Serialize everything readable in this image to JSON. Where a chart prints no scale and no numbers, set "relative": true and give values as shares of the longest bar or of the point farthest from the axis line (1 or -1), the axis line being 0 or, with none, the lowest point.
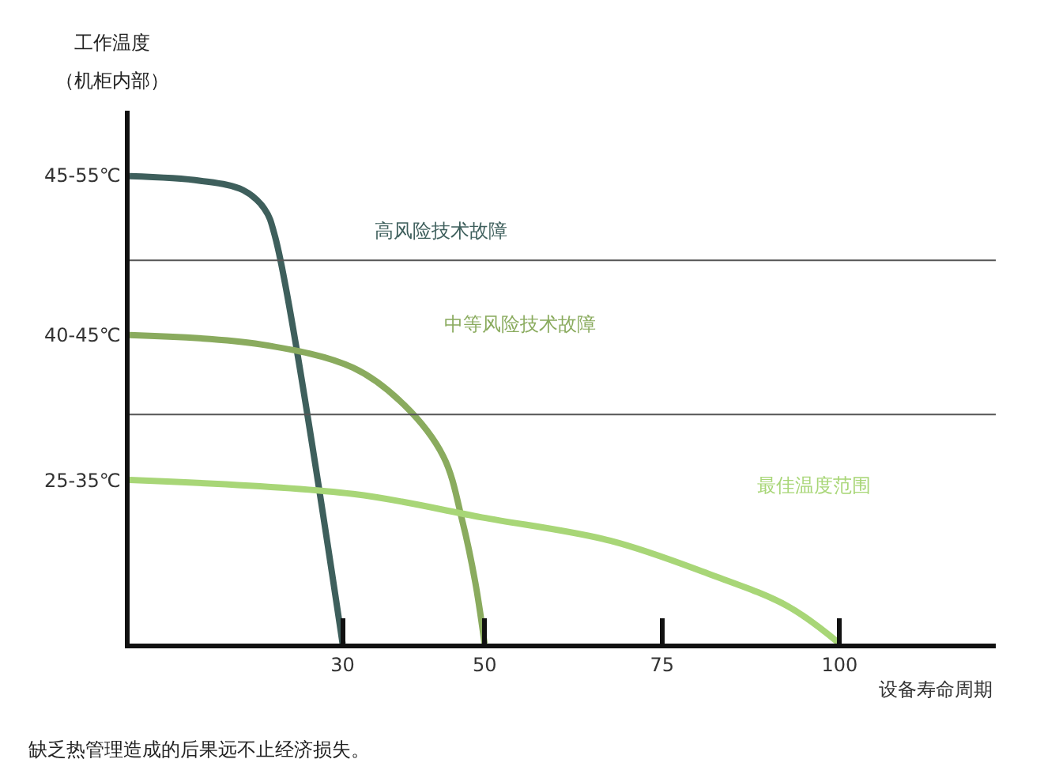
{
  "chart_data": {
    "type": "line",
    "xlabel": "设备寿命周期",
    "relative": true,
    "xlim": [
      0,
      122
    ],
    "xticks": [
      30,
      50,
      75,
      100
    ],
    "series": [
      {
        "name": "高风险技术故障",
        "color": "#3e5f5c",
        "x": [
          0,
          10,
          16,
          19,
          20.5,
          30
        ],
        "values": [
          1,
          0.99,
          0.97,
          0.93,
          0.87,
          0
        ]
      },
      {
        "name": "中等风险技术故障",
        "color": "#8aab5e",
        "x": [
          0,
          18.5,
          31.5,
          38.7,
          44.2,
          46.9,
          48.7,
          50
        ],
        "values": [
          0.66,
          0.64,
          0.59,
          0.51,
          0.4,
          0.26,
          0.13,
          0
        ]
      },
      {
        "name": "最佳温度范围",
        "color": "#a8d677",
        "x": [
          0,
          31.5,
          49.6,
          67.7,
          81.4,
          92.7,
          100
        ],
        "values": [
          0.35,
          0.32,
          0.27,
          0.22,
          0.15,
          0.08,
          0
        ]
      }
    ],
    "ref_lines": [
      {
        "axis": "y",
        "value": 0.82,
        "color": "#555555"
      },
      {
        "axis": "y",
        "value": 0.49,
        "color": "#555555"
      }
    ],
    "annotations": [
      "工作温度",
      "（机柜内部）",
      "45-55℃",
      "40-45℃",
      "25-35℃",
      "缺乏热管理造成的后果远不止经济损失。"
    ],
    "legend": false,
    "marker": "none",
    "line_style": "solid"
  }
}
